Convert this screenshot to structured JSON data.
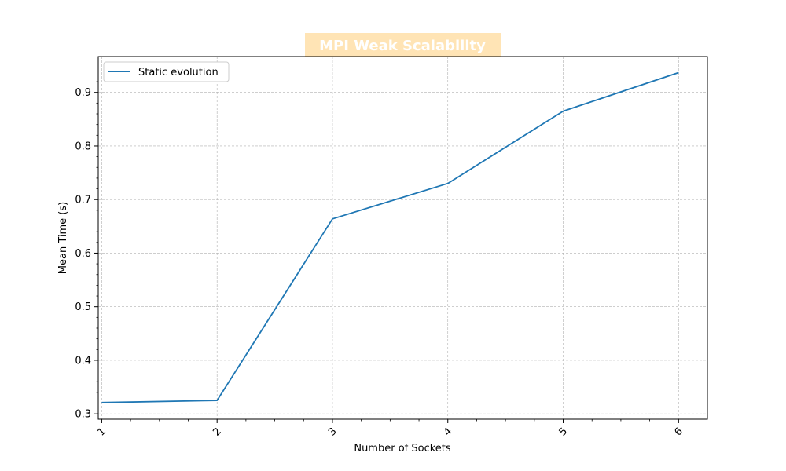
{
  "chart_data": {
    "type": "line",
    "title": "MPI Weak Scalability",
    "xlabel": "Number of Sockets",
    "ylabel": "Mean Time (s)",
    "xlim": [
      0.97,
      6.25
    ],
    "ylim": [
      0.29,
      0.967
    ],
    "x_ticks": [
      "1",
      "2",
      "3",
      "4",
      "5",
      "6"
    ],
    "y_ticks": [
      "0.3",
      "0.4",
      "0.5",
      "0.6",
      "0.7",
      "0.8",
      "0.9"
    ],
    "grid": true,
    "legend_position": "top-left",
    "series": [
      {
        "name": "Static evolution",
        "color": "#1f77b4",
        "x": [
          1,
          2,
          3,
          4,
          5,
          6
        ],
        "y": [
          0.321,
          0.325,
          0.664,
          0.73,
          0.865,
          0.937
        ]
      }
    ],
    "colors": {
      "title_box": "#ffe4b5",
      "title_text": "#ffffff",
      "grid": "#b0b0b0",
      "axes": "#000000"
    }
  }
}
